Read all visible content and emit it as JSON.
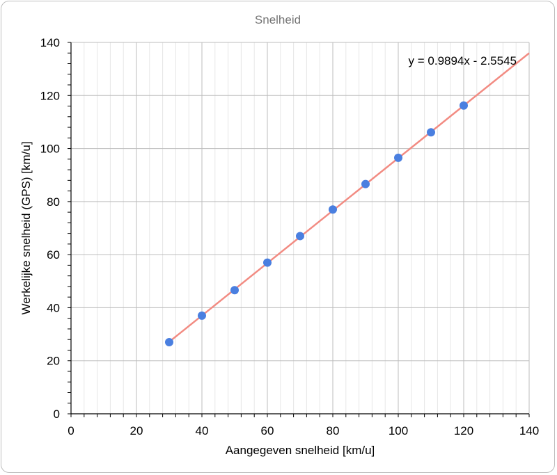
{
  "chart_data": {
    "type": "scatter",
    "title": "Snelheid",
    "xlabel": "Aangegeven snelheid [km/u]",
    "ylabel": "Werkelijke snelheid (GPS) [km/u]",
    "xlim": [
      0,
      140
    ],
    "ylim": [
      0,
      140
    ],
    "xticks": [
      "0",
      "20",
      "40",
      "60",
      "80",
      "100",
      "120",
      "140"
    ],
    "yticks": [
      "0",
      "20",
      "40",
      "60",
      "80",
      "100",
      "120",
      "140"
    ],
    "grid": true,
    "x": [
      30,
      40,
      50,
      60,
      70,
      80,
      90,
      100,
      110,
      120
    ],
    "y": [
      27.0,
      37.0,
      46.6,
      57.0,
      67.0,
      77.0,
      86.6,
      96.5,
      106.1,
      116.2
    ],
    "trendline": {
      "equation": "y = 0.9894x - 2.5545",
      "slope": 0.9894,
      "intercept": -2.5545,
      "x_start": 30,
      "x_end": 140
    },
    "colors": {
      "points": "#4a7fe0",
      "trendline": "#f28b82",
      "major_grid": "#bdbdbd",
      "minor_grid": "#e6e6e6"
    }
  }
}
